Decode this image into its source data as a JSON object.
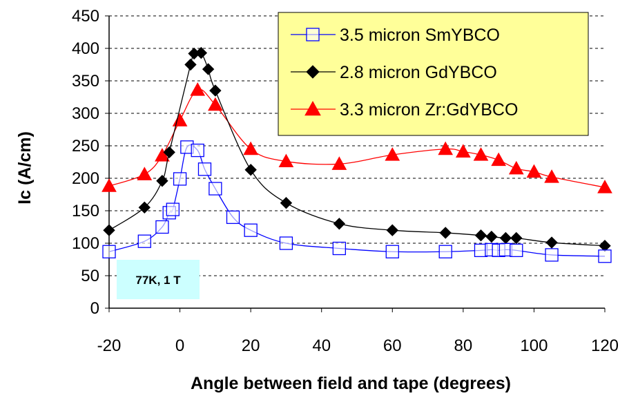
{
  "chart_data": {
    "type": "scatter",
    "xlabel": "Angle between field and tape (degrees)",
    "ylabel": "Ic (A/cm)",
    "xlim": [
      -20,
      120
    ],
    "ylim": [
      0,
      450
    ],
    "x_ticks": [
      "-20",
      "0",
      "20",
      "40",
      "60",
      "80",
      "100",
      "120"
    ],
    "y_ticks": [
      "0",
      "50",
      "100",
      "150",
      "200",
      "250",
      "300",
      "350",
      "400",
      "450"
    ],
    "grid": "horizontal dashed",
    "legend_position": "top-right",
    "annotation": "77K, 1 T",
    "series": [
      {
        "name": "3.5 micron SmYBCO",
        "color": "#0000ff",
        "marker": "open-square",
        "x": [
          -20,
          -10,
          -5,
          -3,
          -2,
          0,
          2,
          5,
          7,
          10,
          15,
          20,
          30,
          45,
          60,
          75,
          85,
          88,
          90,
          92,
          95,
          105,
          120
        ],
        "y": [
          87,
          103,
          125,
          147,
          152,
          199,
          248,
          243,
          214,
          184,
          140,
          120,
          100,
          92,
          87,
          87,
          89,
          90,
          89,
          90,
          89,
          82,
          80
        ]
      },
      {
        "name": "2.8 micron GdYBCO",
        "color": "#000000",
        "marker": "filled-diamond",
        "x": [
          -20,
          -10,
          -5,
          -3,
          3,
          4,
          6,
          8,
          10,
          20,
          30,
          45,
          60,
          75,
          85,
          88,
          92,
          95,
          105,
          120
        ],
        "y": [
          120,
          155,
          196,
          240,
          375,
          392,
          393,
          368,
          335,
          213,
          162,
          130,
          120,
          116,
          112,
          110,
          108,
          108,
          101,
          96
        ]
      },
      {
        "name": "3.3 micron Zr:GdYBCO",
        "color": "#ff0000",
        "marker": "filled-triangle",
        "x": [
          -20,
          -10,
          -5,
          0,
          5,
          10,
          20,
          30,
          45,
          60,
          75,
          80,
          85,
          90,
          95,
          100,
          105,
          120
        ],
        "y": [
          188,
          206,
          235,
          289,
          336,
          313,
          245,
          226,
          222,
          236,
          245,
          241,
          236,
          228,
          215,
          210,
          202,
          186
        ]
      }
    ]
  }
}
